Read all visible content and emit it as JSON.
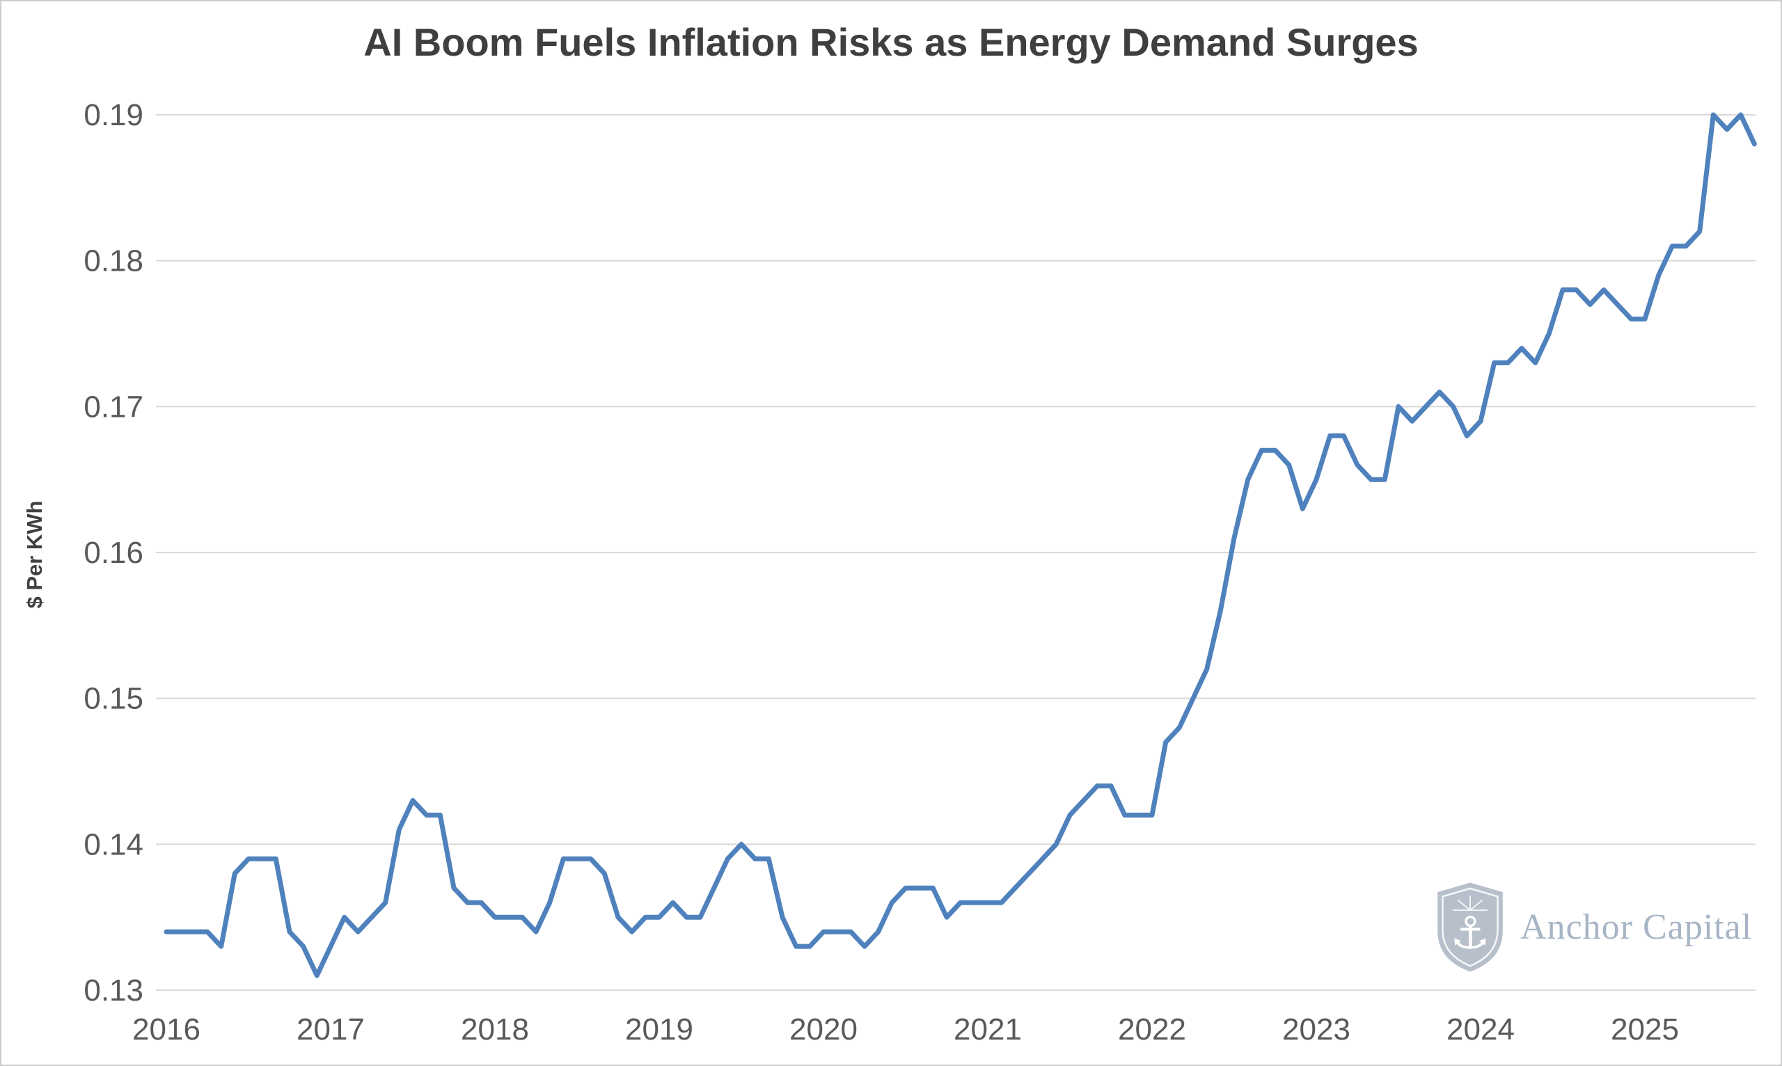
{
  "chart_data": {
    "type": "line",
    "title": "AI Boom Fuels Inflation Risks as Energy Demand Surges",
    "ylabel": "$ Per KWh",
    "ylim": [
      0.13,
      0.19
    ],
    "yticks": [
      0.13,
      0.14,
      0.15,
      0.16,
      0.17,
      0.18,
      0.19
    ],
    "xticks": [
      2016,
      2017,
      2018,
      2019,
      2020,
      2021,
      2022,
      2023,
      2024,
      2025
    ],
    "x_start_year": 2016,
    "points_per_year": 12,
    "grid": true,
    "legend_position": "none",
    "line_color": "#4f81bd",
    "grid_color": "#d8d8d8",
    "tick_color": "#595959",
    "series": [
      {
        "name": "$ per KWh",
        "values": [
          0.134,
          0.134,
          0.134,
          0.134,
          0.133,
          0.138,
          0.139,
          0.139,
          0.139,
          0.134,
          0.133,
          0.131,
          0.133,
          0.135,
          0.134,
          0.135,
          0.136,
          0.141,
          0.143,
          0.142,
          0.142,
          0.137,
          0.136,
          0.136,
          0.135,
          0.135,
          0.135,
          0.134,
          0.136,
          0.139,
          0.139,
          0.139,
          0.138,
          0.135,
          0.134,
          0.135,
          0.135,
          0.136,
          0.135,
          0.135,
          0.137,
          0.139,
          0.14,
          0.139,
          0.139,
          0.135,
          0.133,
          0.133,
          0.134,
          0.134,
          0.134,
          0.133,
          0.134,
          0.136,
          0.137,
          0.137,
          0.137,
          0.135,
          0.136,
          0.136,
          0.136,
          0.136,
          0.137,
          0.138,
          0.139,
          0.14,
          0.142,
          0.143,
          0.144,
          0.144,
          0.142,
          0.142,
          0.142,
          0.147,
          0.148,
          0.15,
          0.152,
          0.156,
          0.161,
          0.165,
          0.167,
          0.167,
          0.166,
          0.163,
          0.165,
          0.168,
          0.168,
          0.166,
          0.165,
          0.165,
          0.17,
          0.169,
          0.17,
          0.171,
          0.17,
          0.168,
          0.169,
          0.173,
          0.173,
          0.174,
          0.173,
          0.175,
          0.178,
          0.178,
          0.177,
          0.178,
          0.177,
          0.176,
          0.176,
          0.179,
          0.181,
          0.181,
          0.182,
          0.19,
          0.189,
          0.19,
          0.188
        ]
      }
    ]
  },
  "logo": {
    "text": "Anchor Capital"
  }
}
